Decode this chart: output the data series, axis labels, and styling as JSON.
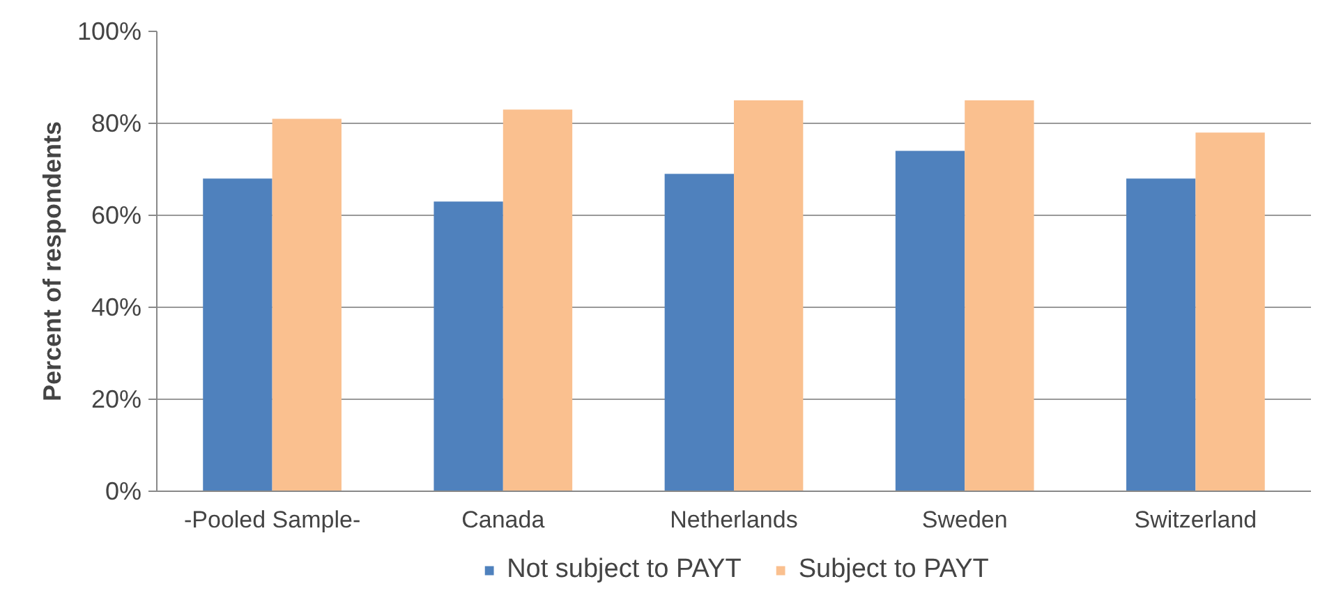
{
  "chart_data": {
    "type": "bar",
    "ylabel": "Percent of respondents",
    "categories": [
      "-Pooled Sample-",
      "Canada",
      "Netherlands",
      "Sweden",
      "Switzerland"
    ],
    "series": [
      {
        "name": "Not subject to PAYT",
        "color": "#4f81bd",
        "values": [
          68,
          63,
          69,
          74,
          68
        ]
      },
      {
        "name": "Subject to PAYT",
        "color": "#fac08f",
        "values": [
          81,
          83,
          85,
          85,
          78
        ]
      }
    ],
    "ylim": [
      0,
      100
    ],
    "yticks": [
      {
        "value": 0,
        "label": "0%"
      },
      {
        "value": 20,
        "label": "20%"
      },
      {
        "value": 40,
        "label": "40%"
      },
      {
        "value": 60,
        "label": "60%"
      },
      {
        "value": 80,
        "label": "80%"
      },
      {
        "value": 100,
        "label": "100%"
      }
    ],
    "grid": "y",
    "legend": "bottom"
  }
}
